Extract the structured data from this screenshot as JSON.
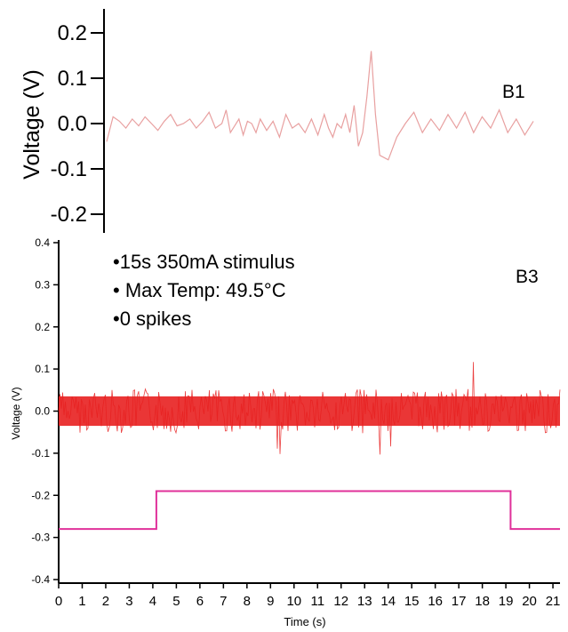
{
  "chart_data": [
    {
      "id": "B1",
      "type": "line",
      "panel_label": "B1",
      "title": "",
      "xlabel": "",
      "ylabel": "Voltage (V)",
      "ylim": [
        -0.2,
        0.2
      ],
      "yticks": [
        "0.2",
        "0.1",
        "0.0",
        "-0.1",
        "-0.2"
      ],
      "ytick_values": [
        0.2,
        0.1,
        0.0,
        -0.1,
        -0.2
      ],
      "grid": false,
      "series": [
        {
          "color": "#e8a0a0",
          "x": [
            0,
            1.5,
            3,
            4.5,
            6,
            7.5,
            9,
            10.5,
            12,
            13.5,
            15,
            16.5,
            18,
            19.5,
            21,
            22.5,
            24,
            25.5,
            27,
            28,
            29,
            30,
            31,
            32,
            33,
            34,
            35,
            36,
            37.5,
            39,
            40.5,
            42,
            43.5,
            45,
            46.5,
            48,
            49.5,
            51,
            52,
            53,
            54,
            55,
            56,
            57,
            58,
            59,
            60,
            61,
            62,
            63,
            64,
            66,
            68,
            70,
            72,
            74,
            76,
            78,
            80,
            82,
            84,
            86,
            88,
            90,
            92,
            94,
            96,
            98,
            100
          ],
          "y": [
            -0.04,
            0.015,
            0.005,
            -0.01,
            0.01,
            -0.005,
            0.015,
            0.0,
            -0.015,
            0.005,
            0.02,
            -0.005,
            0.0,
            0.01,
            -0.01,
            0.005,
            0.025,
            -0.01,
            0.0,
            0.03,
            -0.02,
            -0.005,
            0.01,
            -0.025,
            0.005,
            0.0,
            -0.02,
            0.01,
            -0.015,
            0.005,
            -0.03,
            0.02,
            -0.01,
            0.0,
            -0.02,
            0.01,
            -0.025,
            0.02,
            -0.01,
            -0.03,
            0.0,
            -0.01,
            0.02,
            -0.02,
            0.04,
            -0.05,
            -0.02,
            0.06,
            0.16,
            0.02,
            -0.07,
            -0.08,
            -0.03,
            0.0,
            0.025,
            -0.02,
            0.01,
            -0.015,
            0.02,
            -0.01,
            0.025,
            -0.02,
            0.015,
            -0.01,
            0.03,
            -0.02,
            0.01,
            -0.025,
            0.005
          ]
        }
      ]
    },
    {
      "id": "B3",
      "type": "line",
      "panel_label": "B3",
      "title": "",
      "xlabel": "Time (s)",
      "ylabel": "Voltage (V)",
      "xlim": [
        0,
        21.3
      ],
      "ylim": [
        -0.4,
        0.4
      ],
      "xticks": [
        "0",
        "1",
        "2",
        "3",
        "4",
        "5",
        "6",
        "7",
        "8",
        "9",
        "10",
        "11",
        "12",
        "13",
        "14",
        "15",
        "16",
        "17",
        "18",
        "19",
        "20",
        "21"
      ],
      "xtick_values": [
        0,
        1,
        2,
        3,
        4,
        5,
        6,
        7,
        8,
        9,
        10,
        11,
        12,
        13,
        14,
        15,
        16,
        17,
        18,
        19,
        20,
        21
      ],
      "yticks": [
        "0.4",
        "0.3",
        "0.2",
        "0.1",
        "0.0",
        "-0.1",
        "-0.2",
        "-0.3",
        "-0.4"
      ],
      "ytick_values": [
        0.4,
        0.3,
        0.2,
        0.1,
        0.0,
        -0.1,
        -0.2,
        -0.3,
        -0.4
      ],
      "grid": false,
      "annotations": [
        "•15s 350mA stimulus",
        "• Max Temp: 49.5°C",
        "•0 spikes"
      ],
      "series": [
        {
          "role": "voltage-noise",
          "color": "#e82020",
          "band": [
            -0.035,
            0.035
          ],
          "x": [
            0,
            21.3
          ]
        },
        {
          "role": "stimulus",
          "color": "#e0309a",
          "x": [
            0,
            4.15,
            4.15,
            19.2,
            19.2,
            21.3
          ],
          "y": [
            -0.28,
            -0.28,
            -0.19,
            -0.19,
            -0.28,
            -0.28
          ]
        }
      ]
    }
  ]
}
